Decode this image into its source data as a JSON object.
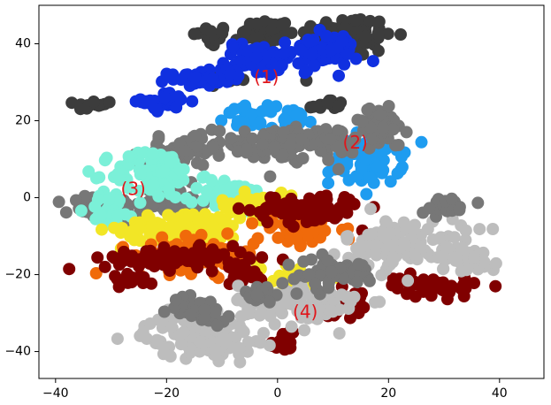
{
  "chart_data": {
    "type": "scatter",
    "title": "",
    "xlabel": "",
    "ylabel": "",
    "xlim": [
      -43,
      48
    ],
    "ylim": [
      -47,
      50
    ],
    "grid": false,
    "xticks": [
      -40,
      -20,
      0,
      20,
      40
    ],
    "yticks": [
      -40,
      -20,
      0,
      20,
      40
    ],
    "xtick_labels": [
      "−40",
      "−20",
      "0",
      "20",
      "40"
    ],
    "ytick_labels": [
      "−40",
      "−20",
      "0",
      "20",
      "40"
    ],
    "annotations": [
      {
        "text": "(1)",
        "x": -2,
        "y": 31
      },
      {
        "text": "(2)",
        "x": 14,
        "y": 14
      },
      {
        "text": "(3)",
        "x": -26,
        "y": 2
      },
      {
        "text": "(4)",
        "x": 5,
        "y": -30
      }
    ],
    "colors": {
      "annotation": "#e0161b",
      "dark_gray": "#3c3c3c",
      "mid_gray": "#777777",
      "light_gray": "#bdbdbd",
      "blue": "#1030e0",
      "light_blue": "#1e9cf0",
      "cyan": "#7bf0d8",
      "yellow": "#f2e626",
      "orange": "#f06a0a",
      "dark_red": "#800000"
    },
    "clusters": [
      {
        "name": "dark-upper",
        "color": "dark_gray",
        "cx": -12,
        "cy": 42,
        "rx": 3,
        "ry": 2.5,
        "n": 30
      },
      {
        "name": "dark-upper",
        "color": "dark_gray",
        "cx": -2,
        "cy": 43,
        "rx": 4,
        "ry": 3,
        "n": 45
      },
      {
        "name": "dark-upper",
        "color": "dark_gray",
        "cx": 12,
        "cy": 42,
        "rx": 8,
        "ry": 5,
        "n": 110
      },
      {
        "name": "dark-upper",
        "color": "dark_gray",
        "cx": -33,
        "cy": 24,
        "rx": 3,
        "ry": 1.2,
        "n": 15
      },
      {
        "name": "dark-upper",
        "color": "dark_gray",
        "cx": 9,
        "cy": 24,
        "rx": 3,
        "ry": 1.5,
        "n": 15
      },
      {
        "name": "dark-upper",
        "color": "dark_gray",
        "cx": -9,
        "cy": 31,
        "rx": 3,
        "ry": 1.5,
        "n": 14
      },
      {
        "name": "blue",
        "color": "blue",
        "cx": -14,
        "cy": 31,
        "rx": 5,
        "ry": 1.8,
        "n": 45
      },
      {
        "name": "blue",
        "color": "blue",
        "cx": -20,
        "cy": 25,
        "rx": 4,
        "ry": 2,
        "n": 35
      },
      {
        "name": "blue",
        "color": "blue",
        "cx": -4,
        "cy": 36,
        "rx": 5,
        "ry": 4,
        "n": 60
      },
      {
        "name": "blue",
        "color": "blue",
        "cx": 8,
        "cy": 38,
        "rx": 6,
        "ry": 4,
        "n": 70
      },
      {
        "name": "light-blue",
        "color": "light_blue",
        "cx": -5,
        "cy": 21,
        "rx": 4,
        "ry": 2.5,
        "n": 30
      },
      {
        "name": "light-blue",
        "color": "light_blue",
        "cx": 3,
        "cy": 20,
        "rx": 3,
        "ry": 2.5,
        "n": 22
      },
      {
        "name": "light-blue",
        "color": "light_blue",
        "cx": 16,
        "cy": 10,
        "rx": 6,
        "ry": 6,
        "n": 80
      },
      {
        "name": "mid-gray",
        "color": "mid_gray",
        "cx": 2,
        "cy": 14,
        "rx": 12,
        "ry": 4,
        "n": 130
      },
      {
        "name": "mid-gray",
        "color": "mid_gray",
        "cx": 18,
        "cy": 19,
        "rx": 5,
        "ry": 4,
        "n": 50
      },
      {
        "name": "mid-gray",
        "color": "mid_gray",
        "cx": -18,
        "cy": 12,
        "rx": 6,
        "ry": 3,
        "n": 45
      },
      {
        "name": "mid-gray",
        "color": "mid_gray",
        "cx": -31,
        "cy": -3,
        "rx": 6,
        "ry": 3.5,
        "n": 60
      },
      {
        "name": "mid-gray",
        "color": "mid_gray",
        "cx": -18,
        "cy": -1,
        "rx": 5,
        "ry": 5,
        "n": 50
      },
      {
        "name": "cyan",
        "color": "cyan",
        "cx": -22,
        "cy": 6,
        "rx": 7,
        "ry": 6,
        "n": 90
      },
      {
        "name": "cyan",
        "color": "cyan",
        "cx": -8,
        "cy": 0,
        "rx": 6,
        "ry": 4,
        "n": 60
      },
      {
        "name": "cyan",
        "color": "cyan",
        "cx": -30,
        "cy": -3,
        "rx": 4,
        "ry": 4,
        "n": 30
      },
      {
        "name": "yellow",
        "color": "yellow",
        "cx": -17,
        "cy": -8,
        "rx": 10,
        "ry": 4,
        "n": 90
      },
      {
        "name": "yellow",
        "color": "yellow",
        "cx": -4,
        "cy": -2,
        "rx": 6,
        "ry": 3,
        "n": 50
      },
      {
        "name": "yellow",
        "color": "yellow",
        "cx": 2,
        "cy": -22,
        "rx": 5,
        "ry": 5,
        "n": 35
      },
      {
        "name": "orange",
        "color": "orange",
        "cx": -15,
        "cy": -15,
        "rx": 10,
        "ry": 4,
        "n": 80
      },
      {
        "name": "orange",
        "color": "orange",
        "cx": 4,
        "cy": -8,
        "rx": 7,
        "ry": 4,
        "n": 55
      },
      {
        "name": "dark-red",
        "color": "dark_red",
        "cx": 5,
        "cy": -3,
        "rx": 9,
        "ry": 3.5,
        "n": 90
      },
      {
        "name": "dark-red",
        "color": "dark_red",
        "cx": -18,
        "cy": -16,
        "rx": 12,
        "ry": 2.5,
        "n": 90
      },
      {
        "name": "dark-red",
        "color": "dark_red",
        "cx": -26,
        "cy": -21,
        "rx": 4,
        "ry": 1.5,
        "n": 20
      },
      {
        "name": "dark-red",
        "color": "dark_red",
        "cx": -6,
        "cy": -20,
        "rx": 3,
        "ry": 2,
        "n": 18
      },
      {
        "name": "dark-red",
        "color": "dark_red",
        "cx": 1,
        "cy": -38,
        "rx": 2,
        "ry": 3,
        "n": 16
      },
      {
        "name": "dark-red",
        "color": "dark_red",
        "cx": 28,
        "cy": -23,
        "rx": 8,
        "ry": 2.5,
        "n": 45
      },
      {
        "name": "dark-red",
        "color": "dark_red",
        "cx": 12,
        "cy": -27,
        "rx": 3,
        "ry": 4,
        "n": 20
      },
      {
        "name": "light-gray",
        "color": "light_gray",
        "cx": -14,
        "cy": -36,
        "rx": 9,
        "ry": 5,
        "n": 120
      },
      {
        "name": "light-gray",
        "color": "light_gray",
        "cx": 4,
        "cy": -28,
        "rx": 10,
        "ry": 5,
        "n": 110
      },
      {
        "name": "light-gray",
        "color": "light_gray",
        "cx": 23,
        "cy": -12,
        "rx": 10,
        "ry": 6,
        "n": 110
      },
      {
        "name": "light-gray",
        "color": "light_gray",
        "cx": 34,
        "cy": -16,
        "rx": 5,
        "ry": 3,
        "n": 40
      },
      {
        "name": "mid-gray",
        "color": "mid_gray",
        "cx": 30,
        "cy": -2,
        "rx": 4,
        "ry": 2,
        "n": 25
      },
      {
        "name": "mid-gray",
        "color": "mid_gray",
        "cx": 10,
        "cy": -20,
        "rx": 8,
        "ry": 4,
        "n": 50
      },
      {
        "name": "mid-gray",
        "color": "mid_gray",
        "cx": -14,
        "cy": -29,
        "rx": 5,
        "ry": 3,
        "n": 40
      },
      {
        "name": "mid-gray",
        "color": "mid_gray",
        "cx": -3,
        "cy": -25,
        "rx": 3,
        "ry": 2,
        "n": 20
      }
    ]
  }
}
